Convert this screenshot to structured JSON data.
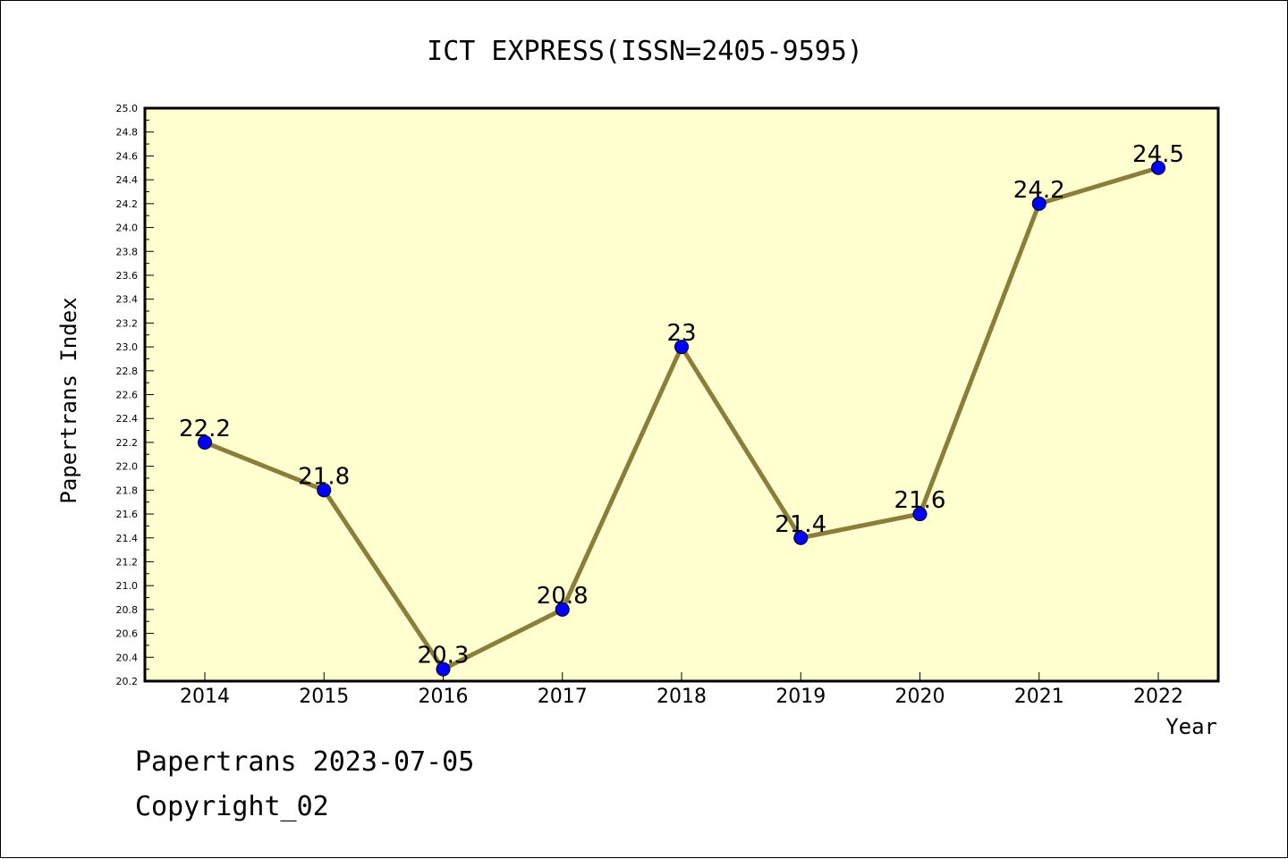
{
  "chart_data": {
    "type": "line",
    "title": "ICT EXPRESS(ISSN=2405-9595)",
    "xlabel": "Year",
    "ylabel": "Papertrans Index",
    "categories": [
      "2014",
      "2015",
      "2016",
      "2017",
      "2018",
      "2019",
      "2020",
      "2021",
      "2022"
    ],
    "series": [
      {
        "values": [
          22.2,
          21.8,
          20.3,
          20.8,
          23,
          21.4,
          21.6,
          24.2,
          24.5
        ],
        "labels": [
          "22.2",
          "21.8",
          "20.3",
          "20.8",
          "23",
          "21.4",
          "21.6",
          "24.2",
          "24.5"
        ]
      }
    ],
    "ylim": [
      20.2,
      25.0
    ],
    "yticks": [
      "20.2",
      "20.4",
      "20.6",
      "20.8",
      "21.0",
      "21.2",
      "21.4",
      "21.6",
      "21.8",
      "22.0",
      "22.2",
      "22.4",
      "22.6",
      "22.8",
      "23.0",
      "23.2",
      "23.4",
      "23.6",
      "23.8",
      "24.0",
      "24.2",
      "24.4",
      "24.6",
      "24.8",
      "25.0"
    ],
    "grid": false,
    "colors": {
      "plot_background": "#ffffd0",
      "line": "#8b7d3a",
      "marker": "#0000ff"
    }
  },
  "footer": {
    "line1": "Papertrans 2023-07-05",
    "line2": "Copyright_02"
  }
}
